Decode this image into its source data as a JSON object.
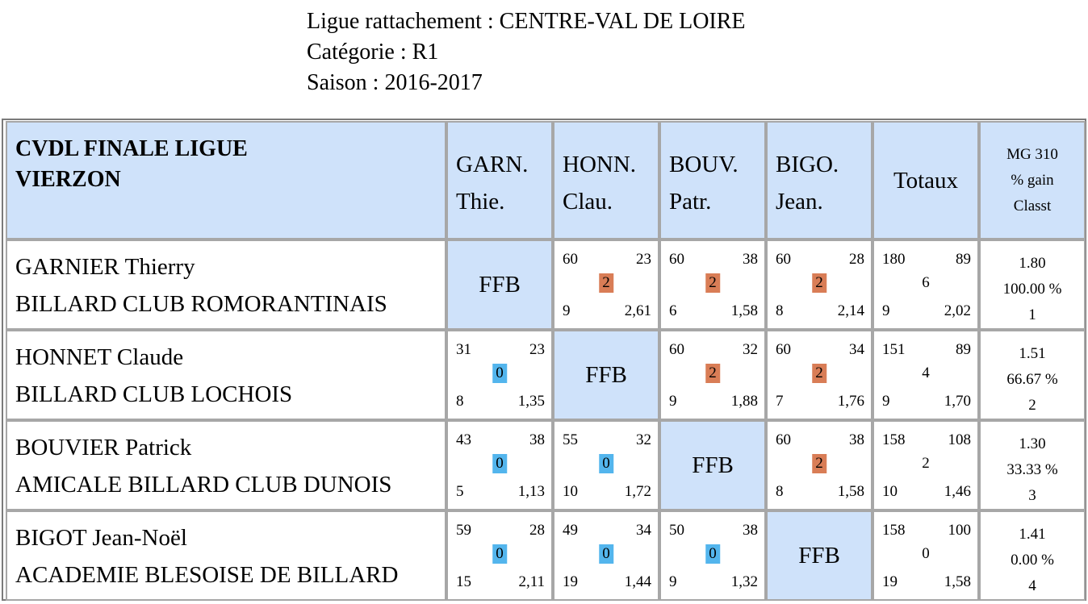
{
  "header": {
    "ligue": "Ligue rattachement : CENTRE-VAL DE LOIRE",
    "categorie": "Catégorie : R1",
    "saison": "Saison : 2016-2017"
  },
  "table": {
    "title": [
      "CVDL FINALE LIGUE",
      "VIERZON"
    ],
    "columns": [
      [
        "GARN.",
        "Thie."
      ],
      [
        "HONN.",
        "Clau."
      ],
      [
        "BOUV.",
        "Patr."
      ],
      [
        "BIGO.",
        "Jean."
      ]
    ],
    "totals_label": "Totaux",
    "stats_header": [
      "MG 310",
      "% gain",
      "Classt"
    ],
    "ffb_label": "FFB",
    "rows": [
      {
        "name": "GARNIER Thierry",
        "club": "BILLARD CLUB ROMORANTINAIS",
        "cells": [
          null,
          {
            "tl": "60",
            "tr": "23",
            "mid": "2",
            "bl": "9",
            "br": "2,61"
          },
          {
            "tl": "60",
            "tr": "38",
            "mid": "2",
            "bl": "6",
            "br": "1,58"
          },
          {
            "tl": "60",
            "tr": "28",
            "mid": "2",
            "bl": "8",
            "br": "2,14"
          }
        ],
        "totals": {
          "tl": "180",
          "tr": "89",
          "mid": "6",
          "bl": "9",
          "br": "2,02"
        },
        "stats": [
          "1.80",
          "100.00 %",
          "1"
        ]
      },
      {
        "name": "HONNET Claude",
        "club": "BILLARD CLUB LOCHOIS",
        "cells": [
          {
            "tl": "31",
            "tr": "23",
            "mid": "0",
            "bl": "8",
            "br": "1,35"
          },
          null,
          {
            "tl": "60",
            "tr": "32",
            "mid": "2",
            "bl": "9",
            "br": "1,88"
          },
          {
            "tl": "60",
            "tr": "34",
            "mid": "2",
            "bl": "7",
            "br": "1,76"
          }
        ],
        "totals": {
          "tl": "151",
          "tr": "89",
          "mid": "4",
          "bl": "9",
          "br": "1,70"
        },
        "stats": [
          "1.51",
          "66.67 %",
          "2"
        ]
      },
      {
        "name": "BOUVIER Patrick",
        "club": "AMICALE BILLARD CLUB DUNOIS",
        "cells": [
          {
            "tl": "43",
            "tr": "38",
            "mid": "0",
            "bl": "5",
            "br": "1,13"
          },
          {
            "tl": "55",
            "tr": "32",
            "mid": "0",
            "bl": "10",
            "br": "1,72"
          },
          null,
          {
            "tl": "60",
            "tr": "38",
            "mid": "2",
            "bl": "8",
            "br": "1,58"
          }
        ],
        "totals": {
          "tl": "158",
          "tr": "108",
          "mid": "2",
          "bl": "10",
          "br": "1,46"
        },
        "stats": [
          "1.30",
          "33.33 %",
          "3"
        ]
      },
      {
        "name": "BIGOT Jean-Noël",
        "club": "ACADEMIE BLESOISE DE BILLARD",
        "cells": [
          {
            "tl": "59",
            "tr": "28",
            "mid": "0",
            "bl": "15",
            "br": "2,11"
          },
          {
            "tl": "49",
            "tr": "34",
            "mid": "0",
            "bl": "19",
            "br": "1,44"
          },
          {
            "tl": "50",
            "tr": "38",
            "mid": "0",
            "bl": "9",
            "br": "1,32"
          },
          null
        ],
        "totals": {
          "tl": "158",
          "tr": "100",
          "mid": "0",
          "bl": "19",
          "br": "1,58"
        },
        "stats": [
          "1.41",
          "0.00 %",
          "4"
        ]
      }
    ]
  },
  "colors": {
    "header_bg": "#cfe2fa",
    "win_badge": "#d97d56",
    "loss_badge": "#53b5ed",
    "cell_border": "#a7a7a7"
  }
}
